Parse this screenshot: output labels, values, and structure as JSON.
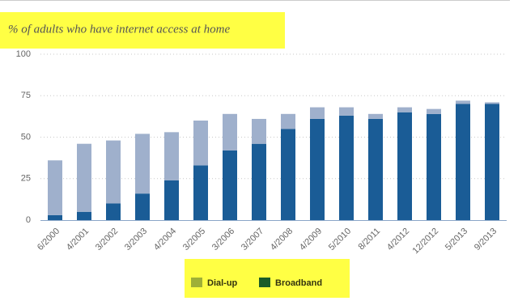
{
  "chart_data": {
    "type": "stacked_bar",
    "title": "% of adults who have internet access at home",
    "categories": [
      "6/2000",
      "4/2001",
      "3/2002",
      "3/2003",
      "4/2004",
      "3/2005",
      "3/2006",
      "3/2007",
      "4/2008",
      "4/2009",
      "5/2010",
      "8/2011",
      "4/2012",
      "12/2012",
      "5/2013",
      "9/2013"
    ],
    "series": [
      {
        "name": "Dial-up",
        "color": "#9fb0cc",
        "values": [
          33,
          41,
          38,
          36,
          29,
          27,
          22,
          15,
          9,
          7,
          5,
          3,
          3,
          3,
          2,
          1
        ]
      },
      {
        "name": "Broadband",
        "color": "#1a5c96",
        "values": [
          3,
          5,
          10,
          16,
          24,
          33,
          42,
          46,
          55,
          61,
          63,
          61,
          65,
          64,
          70,
          70
        ]
      }
    ],
    "ylim": [
      0,
      100
    ],
    "yticks": [
      0,
      25,
      50,
      75,
      100
    ],
    "grid": true
  }
}
